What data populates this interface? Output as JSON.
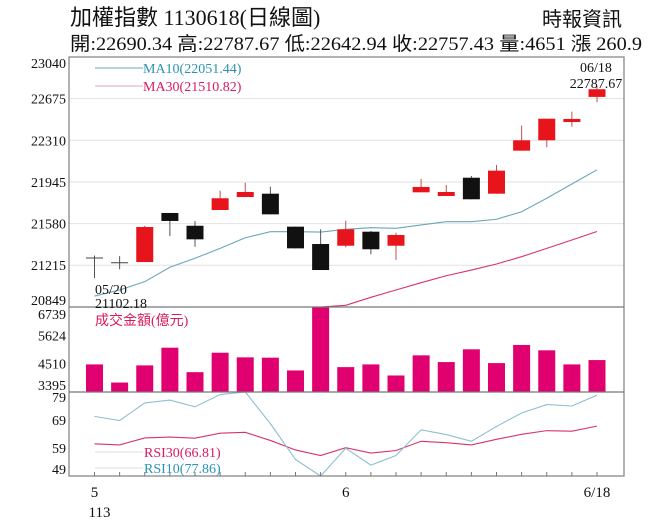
{
  "header": {
    "title": "加權指數 1130618(日線圖)",
    "source": "時報資訊",
    "quote": "開:22690.34 高:22787.67 低:22642.94 收:22757.43 量:4651 漲 260.9"
  },
  "colors": {
    "up": "#e8141b",
    "down": "#111111",
    "ma10": "#6aa6ba",
    "ma30": "#d8336a",
    "volume": "#e0006f",
    "rsi10": "#8fbfd0",
    "rsi30": "#d8336a",
    "legend_ma10_text": "#2a93b5",
    "legend_ma30_text": "#d81b60"
  },
  "chart_data": [
    {
      "type": "candlestick",
      "ylim": [
        20849,
        23040
      ],
      "yticks": [
        "23040",
        "22675",
        "22310",
        "21945",
        "21580",
        "21215",
        "20849"
      ],
      "grid": true,
      "candles": [
        {
          "o": 21278,
          "h": 21300,
          "l": 21102.18,
          "c": 21278
        },
        {
          "o": 21237,
          "h": 21295,
          "l": 21180,
          "c": 21237
        },
        {
          "o": 21243,
          "h": 21561,
          "l": 21243,
          "c": 21550
        },
        {
          "o": 21673,
          "h": 21673,
          "l": 21471,
          "c": 21603
        },
        {
          "o": 21561,
          "h": 21603,
          "l": 21377,
          "c": 21442
        },
        {
          "o": 21699,
          "h": 21868,
          "l": 21699,
          "c": 21802
        },
        {
          "o": 21813,
          "h": 21938,
          "l": 21813,
          "c": 21857
        },
        {
          "o": 21842,
          "h": 21903,
          "l": 21661,
          "c": 21661
        },
        {
          "o": 21553,
          "h": 21553,
          "l": 21363,
          "c": 21363
        },
        {
          "o": 21401,
          "h": 21530,
          "l": 21173,
          "c": 21173
        },
        {
          "o": 21386,
          "h": 21605,
          "l": 21372,
          "c": 21530
        },
        {
          "o": 21509,
          "h": 21515,
          "l": 21311,
          "c": 21355
        },
        {
          "o": 21386,
          "h": 21500,
          "l": 21261,
          "c": 21480
        },
        {
          "o": 21854,
          "h": 21971,
          "l": 21854,
          "c": 21901
        },
        {
          "o": 21822,
          "h": 21918,
          "l": 21822,
          "c": 21857
        },
        {
          "o": 21982,
          "h": 21997,
          "l": 21793,
          "c": 21793
        },
        {
          "o": 21842,
          "h": 22093,
          "l": 21842,
          "c": 22044
        },
        {
          "o": 22219,
          "h": 22438,
          "l": 22219,
          "c": 22310
        },
        {
          "o": 22310,
          "h": 22499,
          "l": 22249,
          "c": 22499
        },
        {
          "o": 22470,
          "h": 22561,
          "l": 22429,
          "c": 22497
        },
        {
          "o": 22690.34,
          "h": 22787.67,
          "l": 22642.94,
          "c": 22757.43
        }
      ],
      "ma10": {
        "name": "MA10(22051.44)",
        "values": [
          20945,
          20998,
          21071,
          21197,
          21276,
          21363,
          21456,
          21509,
          21509,
          21506,
          21530,
          21544,
          21539,
          21568,
          21597,
          21597,
          21618,
          21684,
          21802,
          21927,
          22051.44
        ]
      },
      "ma30": {
        "name": "MA30(21510.82)",
        "values": [
          20849,
          20849,
          20849,
          20849,
          20849,
          20849,
          20849,
          20849,
          20849,
          20849,
          20864,
          20934,
          20998,
          21062,
          21123,
          21173,
          21226,
          21290,
          21363,
          21436,
          21510.82
        ]
      },
      "annotations": {
        "high_date": "06/18",
        "high_value": "22787.67",
        "low_date": "05/20",
        "low_value": "21102.18"
      }
    },
    {
      "type": "bar",
      "title": "成交金額(億元)",
      "ylim": [
        3395,
        6739
      ],
      "yticks": [
        "6739",
        "5624",
        "4510",
        "3395"
      ],
      "values": [
        4480,
        3767,
        4441,
        5138,
        4175,
        4940,
        4758,
        4745,
        4243,
        6739,
        4374,
        4480,
        4045,
        4837,
        4572,
        5075,
        4532,
        5245,
        5035,
        4480,
        4651
      ]
    },
    {
      "type": "line",
      "ylim": [
        49,
        79
      ],
      "yticks": [
        "79",
        "69",
        "59",
        "49"
      ],
      "series": [
        {
          "name": "RSI30(66.81)",
          "values": [
            60.5,
            60.1,
            62.6,
            62.9,
            62.5,
            64.3,
            64.6,
            61.7,
            58.3,
            56.3,
            59.1,
            57.2,
            58.1,
            61.4,
            60.9,
            60.1,
            62.1,
            63.9,
            65.2,
            65.0,
            66.81
          ]
        },
        {
          "name": "RSI10(77.86)",
          "values": [
            70.3,
            68.8,
            75.1,
            76.1,
            73.7,
            78.1,
            80.0,
            67.7,
            54.9,
            48.5,
            58.9,
            52.9,
            56.3,
            65.5,
            63.8,
            61.4,
            66.7,
            71.5,
            74.5,
            74.0,
            77.86
          ]
        }
      ],
      "xticks": [
        "5",
        "6",
        "6/18"
      ],
      "xsub": "113"
    }
  ]
}
